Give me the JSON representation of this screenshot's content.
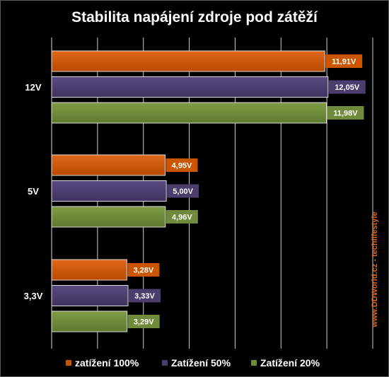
{
  "chart_data": {
    "type": "bar",
    "orientation": "horizontal",
    "title": "Stabilita napájení zdroje pod zátěží",
    "categories": [
      "12V",
      "5V",
      "3,3V"
    ],
    "series": [
      {
        "name": "zatížení 100%",
        "color": "#cc5500",
        "values": [
          11.91,
          4.95,
          3.28
        ],
        "labels": [
          "11,91V",
          "4,95V",
          "3,28V"
        ]
      },
      {
        "name": "Zatížení 50%",
        "color": "#4b3d6e",
        "values": [
          12.05,
          5.0,
          3.33
        ],
        "labels": [
          "12,05V",
          "5,00V",
          "3,33V"
        ]
      },
      {
        "name": "Zatížení 20%",
        "color": "#6e8a3a",
        "values": [
          11.98,
          4.96,
          3.29
        ],
        "labels": [
          "11,98V",
          "4,96V",
          "3,29V"
        ]
      }
    ],
    "xlim": [
      0,
      14
    ],
    "grid": true,
    "legend_position": "bottom",
    "background": "#000000"
  },
  "watermark": "www.DDWorld.cz - techlifestyle"
}
